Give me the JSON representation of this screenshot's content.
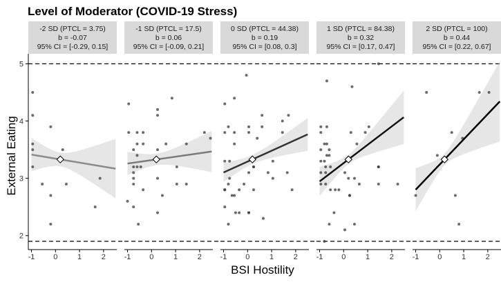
{
  "chart_data": {
    "type": "scatter",
    "title": "Level of Moderator (COVID-19 Stress)",
    "xlabel": "BSI Hostility",
    "ylabel": "External Eating",
    "xlim": [
      -1.13,
      2.55
    ],
    "ylim": [
      1.78,
      5.15
    ],
    "x_ticks": [
      -1,
      0,
      1,
      2
    ],
    "y_ticks": [
      2,
      3,
      4,
      5
    ],
    "reference_lines_y": [
      5,
      1.9
    ],
    "mean_point": {
      "x": 0.2,
      "y": 3.33
    },
    "panels": [
      {
        "strip": [
          "-2 SD (PTCL = 3.75)",
          "b = -0.07",
          "95% CI = [-0.29, 0.15]"
        ],
        "line_color": "#8a8a8a",
        "intercept_at_mean": 3.33,
        "slope": -0.07,
        "ci_center_halfwidth": 0.12,
        "ci_slope_se": 0.22,
        "points": [
          [
            -0.95,
            4.5
          ],
          [
            -0.95,
            4.1
          ],
          [
            -0.95,
            3.6
          ],
          [
            -0.95,
            3.5
          ],
          [
            -0.95,
            3.2
          ],
          [
            -0.2,
            3.9
          ],
          [
            0.3,
            3.5
          ],
          [
            -0.55,
            2.9
          ],
          [
            0.45,
            2.9
          ],
          [
            -0.2,
            2.7
          ],
          [
            -0.2,
            2.2
          ],
          [
            1.85,
            3.0
          ],
          [
            1.65,
            2.5
          ]
        ]
      },
      {
        "strip": [
          "-1 SD (PTCL = 17.5)",
          "b = 0.06",
          "95% CI = [-0.09, 0.21]"
        ],
        "line_color": "#7a7a7a",
        "intercept_at_mean": 3.33,
        "slope": 0.06,
        "ci_center_halfwidth": 0.1,
        "ci_slope_se": 0.15,
        "points": [
          [
            -0.95,
            4.3
          ],
          [
            -0.95,
            3.8
          ],
          [
            -0.75,
            3.5
          ],
          [
            -0.6,
            3.8
          ],
          [
            -0.6,
            3.6
          ],
          [
            -0.35,
            3.8
          ],
          [
            -0.35,
            3.6
          ],
          [
            0.25,
            4.2
          ],
          [
            0.25,
            4.1
          ],
          [
            0.25,
            3.5
          ],
          [
            0.6,
            3.6
          ],
          [
            0.85,
            4.4
          ],
          [
            1.45,
            3.6
          ],
          [
            2.2,
            3.8
          ],
          [
            2.45,
            3.7
          ],
          [
            -0.6,
            3.4
          ],
          [
            -0.75,
            3.2
          ],
          [
            -0.6,
            3.2
          ],
          [
            -0.45,
            3.2
          ],
          [
            -0.75,
            3.1
          ],
          [
            -0.75,
            3.0
          ],
          [
            -0.75,
            2.9
          ],
          [
            -0.35,
            2.8
          ],
          [
            0.25,
            3.0
          ],
          [
            0.45,
            2.7
          ],
          [
            1.05,
            3.2
          ],
          [
            1.05,
            2.9
          ],
          [
            1.45,
            2.9
          ],
          [
            -1.0,
            2.6
          ],
          [
            -0.75,
            2.5
          ],
          [
            0.25,
            2.4
          ],
          [
            -0.55,
            2.2
          ]
        ]
      },
      {
        "strip": [
          "0 SD (PTCL = 44.38)",
          "b = 0.19",
          "95% CI = [0.08, 0.3]"
        ],
        "line_color": "#333333",
        "intercept_at_mean": 3.33,
        "slope": 0.19,
        "ci_center_halfwidth": 0.08,
        "ci_slope_se": 0.12,
        "points": [
          [
            -0.95,
            4.3
          ],
          [
            -0.8,
            3.9
          ],
          [
            -0.95,
            3.8
          ],
          [
            -0.55,
            4.4
          ],
          [
            -0.55,
            3.8
          ],
          [
            -0.55,
            3.6
          ],
          [
            -0.05,
            4.8
          ],
          [
            0.05,
            3.9
          ],
          [
            0.05,
            3.8
          ],
          [
            0.4,
            3.7
          ],
          [
            0.6,
            4.1
          ],
          [
            0.6,
            3.9
          ],
          [
            1.45,
            4.0
          ],
          [
            1.7,
            4.1
          ],
          [
            1.45,
            3.8
          ],
          [
            -0.95,
            3.3
          ],
          [
            -0.75,
            3.3
          ],
          [
            -0.75,
            3.0
          ],
          [
            -0.8,
            2.9
          ],
          [
            -0.95,
            2.8
          ],
          [
            -0.95,
            2.8
          ],
          [
            -0.65,
            2.7
          ],
          [
            -0.55,
            2.7
          ],
          [
            -0.15,
            2.9
          ],
          [
            0.05,
            3.1
          ],
          [
            0.25,
            3.2
          ],
          [
            0.25,
            2.8
          ],
          [
            1.05,
            3.3
          ],
          [
            0.85,
            3.1
          ],
          [
            1.05,
            3.0
          ],
          [
            1.65,
            3.1
          ],
          [
            1.85,
            2.8
          ],
          [
            -0.95,
            2.5
          ],
          [
            -0.5,
            2.4
          ],
          [
            -0.35,
            2.4
          ],
          [
            0.05,
            2.4
          ],
          [
            0.05,
            2.4
          ],
          [
            -0.8,
            2.2
          ],
          [
            0.65,
            2.3
          ],
          [
            -0.35,
            2.8
          ],
          [
            0.25,
            3.2
          ]
        ]
      },
      {
        "strip": [
          "1 SD (PTCL = 84.38)",
          "b = 0.32",
          "95% CI = [0.17, 0.47]"
        ],
        "line_color": "#111111",
        "intercept_at_mean": 3.33,
        "slope": 0.32,
        "ci_center_halfwidth": 0.08,
        "ci_slope_se": 0.2,
        "points": [
          [
            -0.7,
            4.7
          ],
          [
            0.35,
            4.6
          ],
          [
            -0.95,
            3.9
          ],
          [
            -0.7,
            3.9
          ],
          [
            -0.95,
            3.8
          ],
          [
            0.3,
            3.8
          ],
          [
            1.05,
            3.9
          ],
          [
            -0.8,
            3.6
          ],
          [
            -0.7,
            3.6
          ],
          [
            -0.6,
            3.5
          ],
          [
            0.55,
            3.6
          ],
          [
            -0.95,
            3.5
          ],
          [
            -0.7,
            3.4
          ],
          [
            -0.6,
            3.4
          ],
          [
            0.9,
            3.8
          ],
          [
            1.45,
            5.0
          ],
          [
            -0.95,
            3.3
          ],
          [
            -0.8,
            3.3
          ],
          [
            -0.75,
            3.2
          ],
          [
            -0.55,
            3.2
          ],
          [
            -0.95,
            3.1
          ],
          [
            -0.75,
            3.1
          ],
          [
            0.05,
            3.1
          ],
          [
            -0.95,
            2.9
          ],
          [
            -0.75,
            2.9
          ],
          [
            0.2,
            3.0
          ],
          [
            0.45,
            3.0
          ],
          [
            0.65,
            2.9
          ],
          [
            1.45,
            3.2
          ],
          [
            1.45,
            3.2
          ],
          [
            1.45,
            2.9
          ],
          [
            2.25,
            2.9
          ],
          [
            -0.55,
            2.8
          ],
          [
            -0.35,
            2.8
          ],
          [
            -0.2,
            2.8
          ],
          [
            0.25,
            2.7
          ],
          [
            0.25,
            2.7
          ],
          [
            -0.4,
            2.4
          ],
          [
            -0.6,
            2.2
          ],
          [
            0.45,
            2.2
          ],
          [
            0.05,
            2.1
          ],
          [
            -0.8,
            1.9
          ]
        ]
      },
      {
        "strip": [
          "2 SD (PTCL = 100)",
          "b = 0.44",
          "95% CI = [0.22, 0.67]"
        ],
        "line_color": "#000000",
        "intercept_at_mean": 3.33,
        "slope": 0.44,
        "ci_center_halfwidth": 0.1,
        "ci_slope_se": 0.3,
        "points": [
          [
            -0.55,
            4.5
          ],
          [
            1.65,
            4.5
          ],
          [
            2.05,
            4.5
          ],
          [
            0.5,
            3.8
          ],
          [
            0.95,
            3.7
          ],
          [
            -0.1,
            3.4
          ],
          [
            -1.0,
            2.7
          ],
          [
            0.65,
            2.7
          ],
          [
            0.8,
            2.2
          ]
        ]
      }
    ]
  }
}
